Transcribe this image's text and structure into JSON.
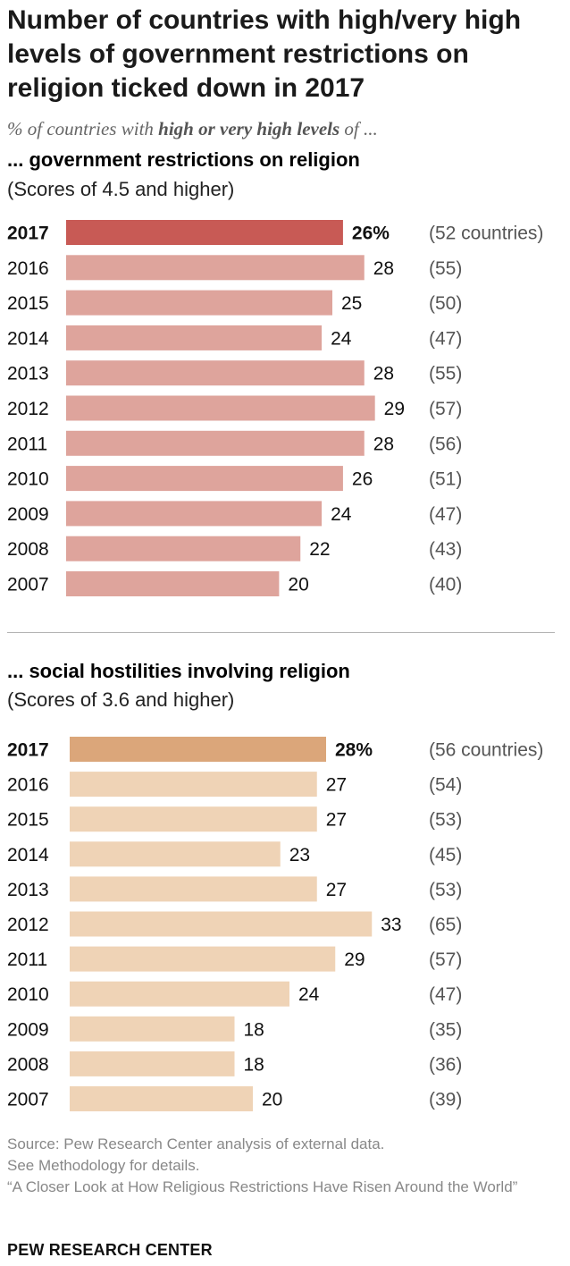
{
  "title": "Number of countries with high/very high levels of government restrictions on religion ticked down in 2017",
  "subtitle": {
    "prefix": "% of countries with ",
    "emphasis": "high or very high levels",
    "suffix": " of ..."
  },
  "chart_data": [
    {
      "type": "bar",
      "orientation": "horizontal",
      "title": "... government restrictions on religion",
      "subtitle": "(Scores of 4.5 and higher)",
      "categories": [
        "2017",
        "2016",
        "2015",
        "2014",
        "2013",
        "2012",
        "2011",
        "2010",
        "2009",
        "2008",
        "2007"
      ],
      "values": [
        26,
        28,
        25,
        24,
        28,
        29,
        28,
        26,
        24,
        22,
        20
      ],
      "value_labels": [
        "26%",
        "28",
        "25",
        "24",
        "28",
        "29",
        "28",
        "26",
        "24",
        "22",
        "20"
      ],
      "counts": [
        "(52 countries)",
        "(55)",
        "(50)",
        "(47)",
        "(55)",
        "(57)",
        "(56)",
        "(51)",
        "(47)",
        "(43)",
        "(40)"
      ],
      "highlight_color": "#c85a55",
      "bar_color": "#dea49c"
    },
    {
      "type": "bar",
      "orientation": "horizontal",
      "title": "... social hostilities involving religion",
      "subtitle": "(Scores of 3.6 and higher)",
      "categories": [
        "2017",
        "2016",
        "2015",
        "2014",
        "2013",
        "2012",
        "2011",
        "2010",
        "2009",
        "2008",
        "2007"
      ],
      "values": [
        28,
        27,
        27,
        23,
        27,
        33,
        29,
        24,
        18,
        18,
        20
      ],
      "value_labels": [
        "28%",
        "27",
        "27",
        "23",
        "27",
        "33",
        "29",
        "24",
        "18",
        "18",
        "20"
      ],
      "counts": [
        "(56 countries)",
        "(54)",
        "(53)",
        "(45)",
        "(53)",
        "(65)",
        "(57)",
        "(47)",
        "(35)",
        "(36)",
        "(39)"
      ],
      "highlight_color": "#dba67a",
      "bar_color": "#efd3b6"
    }
  ],
  "source": {
    "line1": "Source: Pew Research Center analysis of external data.",
    "line2": "See Methodology for details.",
    "line3": "“A Closer Look at How Religious Restrictions Have Risen Around the World”"
  },
  "brand": "PEW RESEARCH CENTER"
}
